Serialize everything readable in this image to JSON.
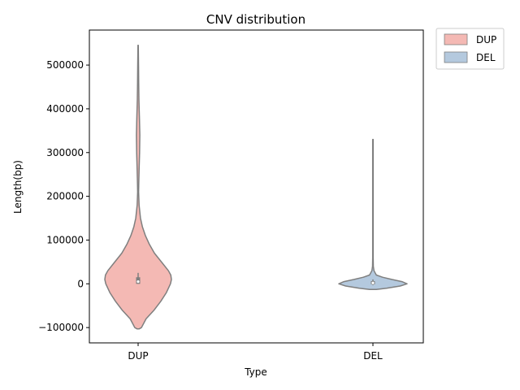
{
  "chart_data": {
    "type": "violin",
    "title": "CNV distribution",
    "xlabel": "Type",
    "ylabel": "Length(bp)",
    "ylim": [
      -135000,
      580000
    ],
    "yticks": [
      -100000,
      0,
      100000,
      200000,
      300000,
      400000,
      500000
    ],
    "ytick_labels": [
      "−100000",
      "0",
      "100000",
      "200000",
      "300000",
      "400000",
      "500000"
    ],
    "categories": [
      "DUP",
      "DEL"
    ],
    "legend": {
      "placement": "outside-top-right",
      "entries": [
        "DUP",
        "DEL"
      ]
    },
    "series": [
      {
        "name": "DUP",
        "color": "#f4b9b4",
        "range": [
          -103000,
          545000
        ],
        "quartiles": [
          0,
          5000,
          15000
        ],
        "whiskers": [
          0,
          25000
        ],
        "density": [
          [
            -103000,
            0.03
          ],
          [
            -100000,
            0.1
          ],
          [
            -80000,
            0.24
          ],
          [
            -60000,
            0.48
          ],
          [
            -40000,
            0.68
          ],
          [
            -20000,
            0.85
          ],
          [
            0,
            0.97
          ],
          [
            10000,
            1.0
          ],
          [
            20000,
            0.98
          ],
          [
            30000,
            0.91
          ],
          [
            50000,
            0.7
          ],
          [
            70000,
            0.49
          ],
          [
            90000,
            0.34
          ],
          [
            110000,
            0.22
          ],
          [
            130000,
            0.13
          ],
          [
            150000,
            0.07
          ],
          [
            180000,
            0.03
          ],
          [
            210000,
            0.015
          ],
          [
            230000,
            0.02
          ],
          [
            260000,
            0.03
          ],
          [
            300000,
            0.045
          ],
          [
            340000,
            0.05
          ],
          [
            380000,
            0.04
          ],
          [
            420000,
            0.025
          ],
          [
            460000,
            0.018
          ],
          [
            500000,
            0.012
          ],
          [
            530000,
            0.008
          ],
          [
            545000,
            0.005
          ]
        ]
      },
      {
        "name": "DEL",
        "color": "#b4c9de",
        "range": [
          -13000,
          330000
        ],
        "quartiles": [
          -1000,
          2000,
          6000
        ],
        "whiskers": [
          -3000,
          10000
        ],
        "density": [
          [
            -13000,
            0.1
          ],
          [
            -10000,
            0.4
          ],
          [
            -5000,
            0.8
          ],
          [
            0,
            1.0
          ],
          [
            5000,
            0.85
          ],
          [
            10000,
            0.55
          ],
          [
            15000,
            0.28
          ],
          [
            20000,
            0.1
          ],
          [
            30000,
            0.03
          ],
          [
            40000,
            0.012
          ],
          [
            60000,
            0.007
          ],
          [
            100000,
            0.007
          ],
          [
            200000,
            0.007
          ],
          [
            300000,
            0.007
          ],
          [
            330000,
            0.006
          ]
        ]
      }
    ]
  }
}
